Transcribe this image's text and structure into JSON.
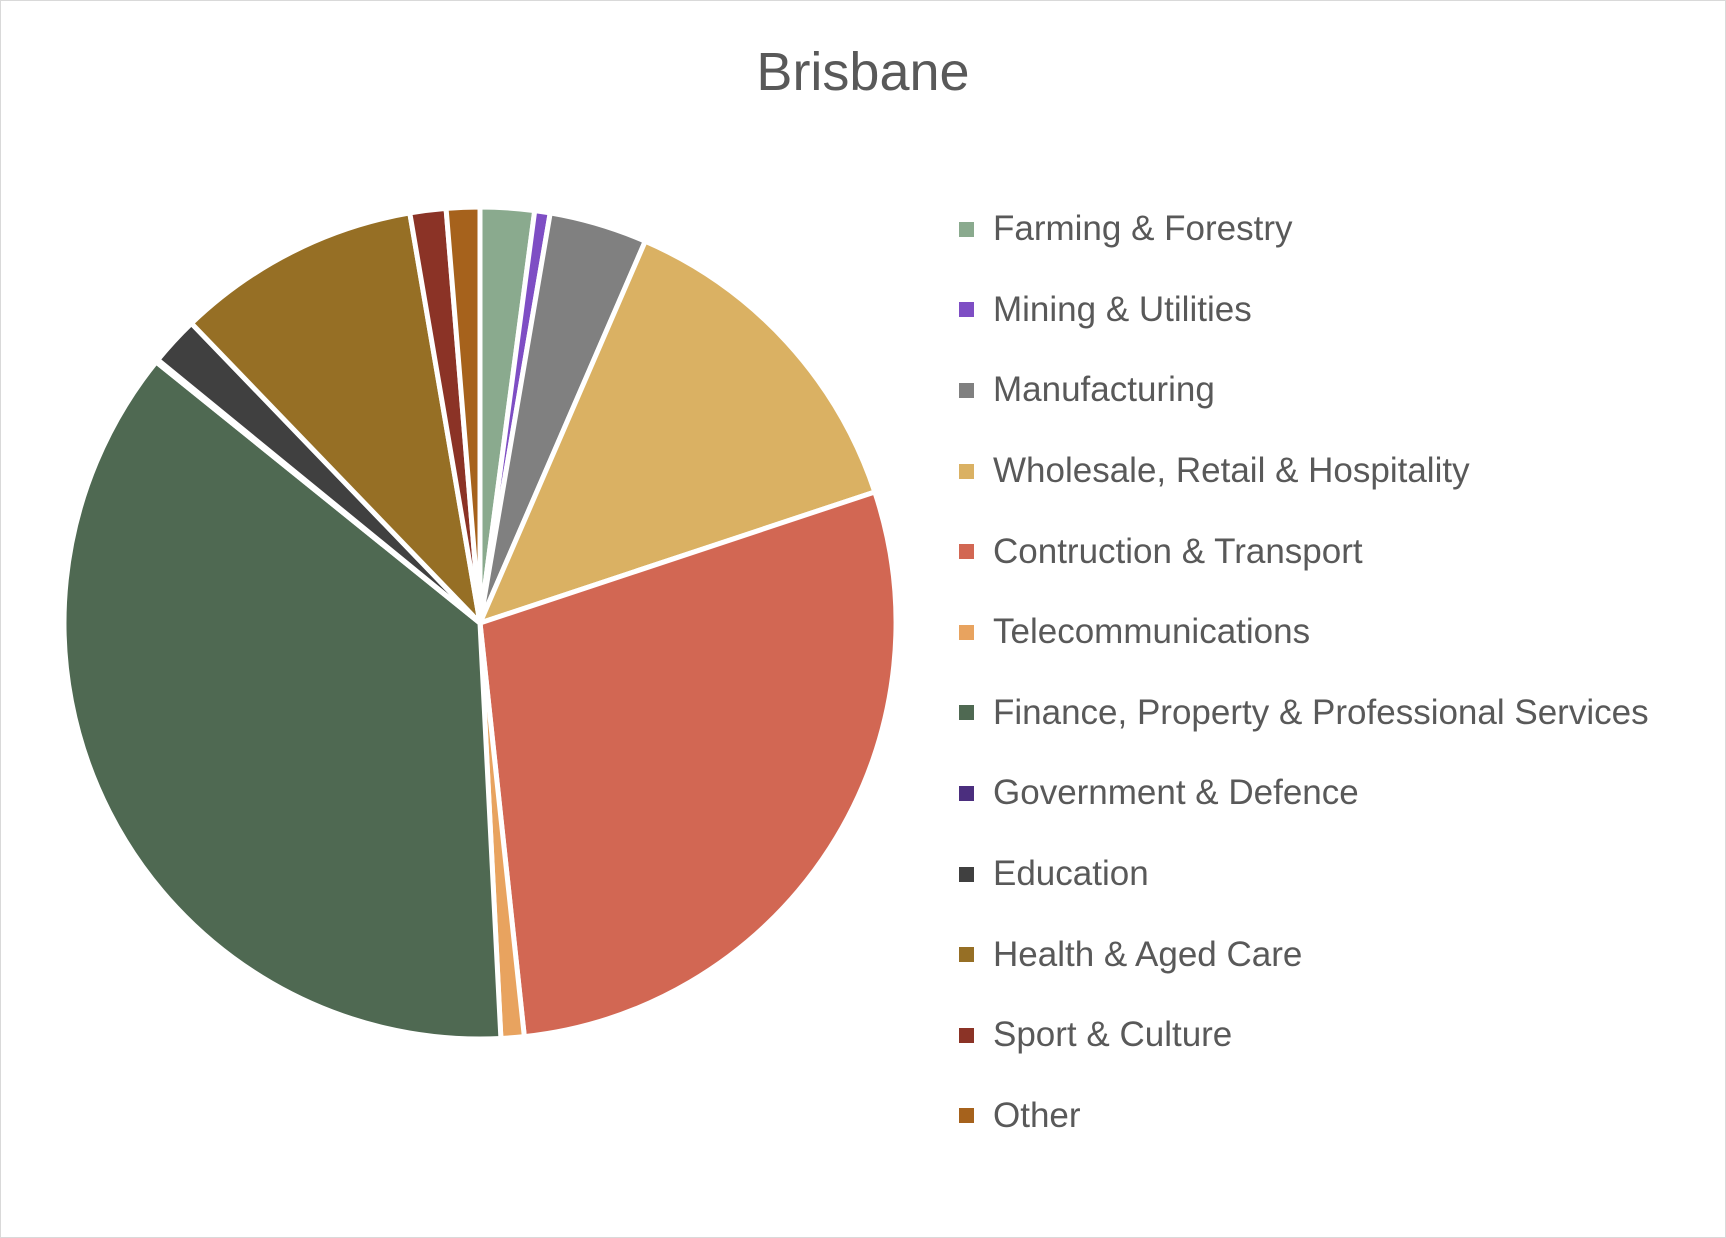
{
  "chart_data": {
    "type": "pie",
    "title": "Brisbane",
    "legend_position": "right",
    "categories": [
      "Farming & Forestry",
      "Mining & Utilities",
      "Manufacturing",
      "Wholesale, Retail & Hospitality",
      "Contruction & Transport",
      "Telecommunications",
      "Finance, Property & Professional Services",
      "Government & Defence",
      "Education",
      "Health & Aged Care",
      "Sport & Culture",
      "Other"
    ],
    "values": [
      2.1,
      0.6,
      3.8,
      13.4,
      28.4,
      0.9,
      36.6,
      0.1,
      1.9,
      9.5,
      1.4,
      1.3
    ],
    "colors": [
      "#8AAA8E",
      "#7E4EC4",
      "#808080",
      "#DAB163",
      "#D26753",
      "#E8A35F",
      "#4F6952",
      "#4B2E7E",
      "#404040",
      "#966F25",
      "#8B3326",
      "#A6621C"
    ]
  }
}
